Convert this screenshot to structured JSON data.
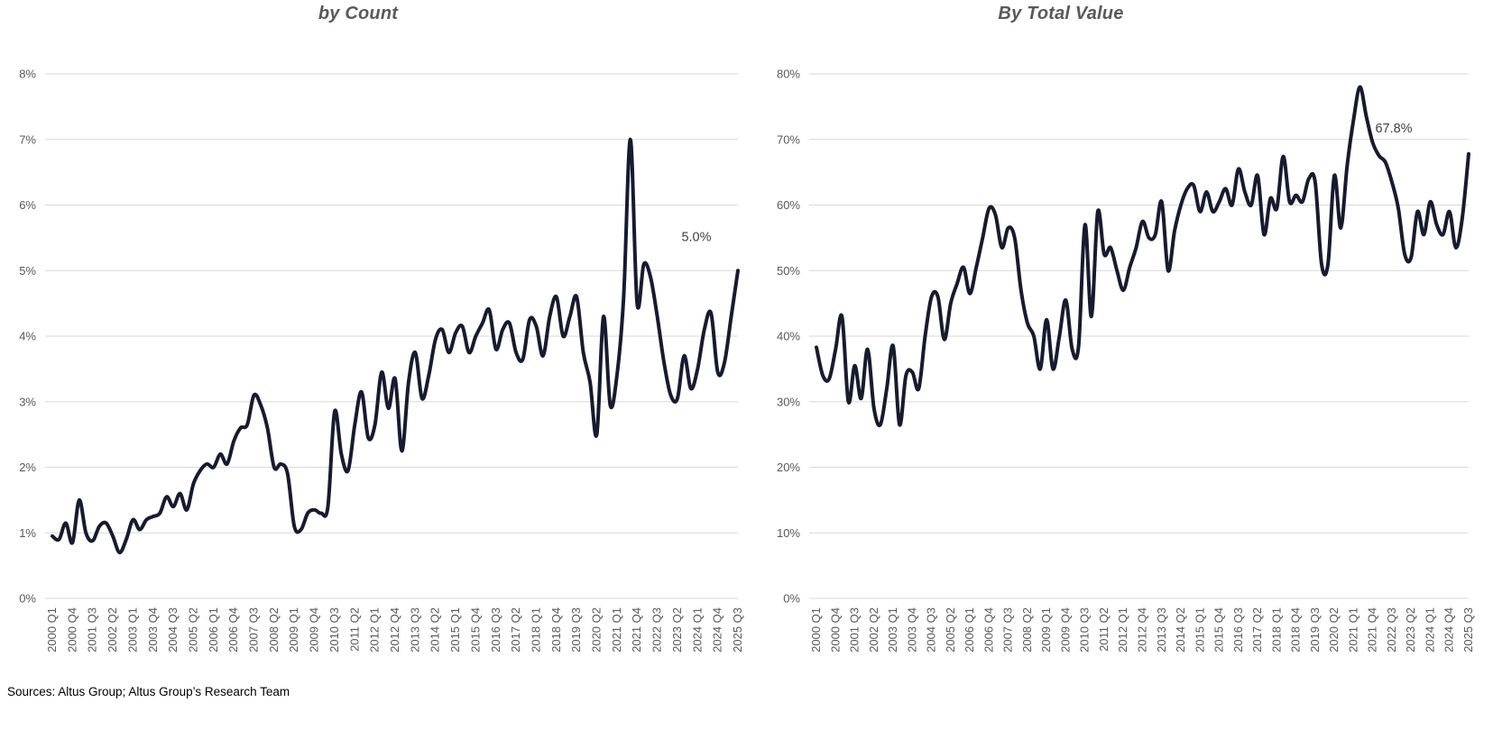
{
  "page": {
    "source_note": "Sources: Altus Group; Altus Group’s Research Team"
  },
  "colors": {
    "line": "#161b2f",
    "grid": "#d9d9d9",
    "axis_text": "#595959",
    "title_text": "#595959",
    "data_label": "#404040"
  },
  "chart_data": [
    {
      "id": "count",
      "type": "line",
      "title": "by Count",
      "ylabel": "",
      "xlabel": "",
      "ylim": [
        0,
        8
      ],
      "ytick_step": 1,
      "ytick_labels": [
        "0%",
        "1%",
        "2%",
        "3%",
        "4%",
        "5%",
        "6%",
        "7%",
        "8%"
      ],
      "grid": true,
      "legend": "none",
      "x_tick_every": 3,
      "end_label": "5.0%",
      "categories": [
        "2000 Q1",
        "2000 Q2",
        "2000 Q3",
        "2000 Q4",
        "2001 Q1",
        "2001 Q2",
        "2001 Q3",
        "2001 Q4",
        "2002 Q1",
        "2002 Q2",
        "2002 Q3",
        "2002 Q4",
        "2003 Q1",
        "2003 Q2",
        "2003 Q3",
        "2003 Q4",
        "2004 Q1",
        "2004 Q2",
        "2004 Q3",
        "2004 Q4",
        "2005 Q1",
        "2005 Q2",
        "2005 Q3",
        "2005 Q4",
        "2006 Q1",
        "2006 Q2",
        "2006 Q3",
        "2006 Q4",
        "2007 Q1",
        "2007 Q2",
        "2007 Q3",
        "2007 Q4",
        "2008 Q1",
        "2008 Q2",
        "2008 Q3",
        "2008 Q4",
        "2009 Q1",
        "2009 Q2",
        "2009 Q3",
        "2009 Q4",
        "2010 Q1",
        "2010 Q2",
        "2010 Q3",
        "2010 Q4",
        "2011 Q1",
        "2011 Q2",
        "2011 Q3",
        "2011 Q4",
        "2012 Q1",
        "2012 Q2",
        "2012 Q3",
        "2012 Q4",
        "2013 Q1",
        "2013 Q2",
        "2013 Q3",
        "2013 Q4",
        "2014 Q1",
        "2014 Q2",
        "2014 Q3",
        "2014 Q4",
        "2015 Q1",
        "2015 Q2",
        "2015 Q3",
        "2015 Q4",
        "2016 Q1",
        "2016 Q2",
        "2016 Q3",
        "2016 Q4",
        "2017 Q1",
        "2017 Q2",
        "2017 Q3",
        "2017 Q4",
        "2018 Q1",
        "2018 Q2",
        "2018 Q3",
        "2018 Q4",
        "2019 Q1",
        "2019 Q2",
        "2019 Q3",
        "2019 Q4",
        "2020 Q1",
        "2020 Q2",
        "2020 Q3",
        "2020 Q4",
        "2021 Q1",
        "2021 Q2",
        "2021 Q3",
        "2021 Q4",
        "2022 Q1",
        "2022 Q2",
        "2022 Q3",
        "2022 Q4",
        "2023 Q1",
        "2023 Q2",
        "2023 Q3",
        "2023 Q4",
        "2024 Q1",
        "2024 Q2",
        "2024 Q3",
        "2024 Q4",
        "2025 Q1",
        "2025 Q2",
        "2025 Q3"
      ],
      "values": [
        0.95,
        0.9,
        1.15,
        0.85,
        1.5,
        1.0,
        0.88,
        1.1,
        1.15,
        0.95,
        0.7,
        0.9,
        1.2,
        1.05,
        1.2,
        1.25,
        1.3,
        1.55,
        1.4,
        1.6,
        1.35,
        1.75,
        1.95,
        2.05,
        2.0,
        2.2,
        2.05,
        2.4,
        2.6,
        2.65,
        3.1,
        2.95,
        2.6,
        2.0,
        2.05,
        1.9,
        1.1,
        1.05,
        1.3,
        1.35,
        1.3,
        1.4,
        2.85,
        2.2,
        1.95,
        2.65,
        3.15,
        2.45,
        2.65,
        3.45,
        2.9,
        3.35,
        2.25,
        3.3,
        3.75,
        3.05,
        3.4,
        3.95,
        4.1,
        3.75,
        4.05,
        4.15,
        3.75,
        4.0,
        4.2,
        4.4,
        3.8,
        4.1,
        4.2,
        3.75,
        3.65,
        4.25,
        4.15,
        3.7,
        4.3,
        4.6,
        4.0,
        4.3,
        4.6,
        3.75,
        3.3,
        2.5,
        4.3,
        2.95,
        3.4,
        4.6,
        7.0,
        4.5,
        5.1,
        4.9,
        4.3,
        3.6,
        3.1,
        3.05,
        3.7,
        3.2,
        3.5,
        4.1,
        4.35,
        3.45,
        3.6,
        4.3,
        5.0
      ]
    },
    {
      "id": "value",
      "type": "line",
      "title": "By Total Value",
      "ylabel": "",
      "xlabel": "",
      "ylim": [
        0,
        80
      ],
      "ytick_step": 10,
      "ytick_labels": [
        "0%",
        "10%",
        "20%",
        "30%",
        "40%",
        "50%",
        "60%",
        "70%",
        "80%"
      ],
      "grid": true,
      "legend": "none",
      "x_tick_every": 3,
      "end_label": "67.8%",
      "categories": [
        "2000 Q1",
        "2000 Q2",
        "2000 Q3",
        "2000 Q4",
        "2001 Q1",
        "2001 Q2",
        "2001 Q3",
        "2001 Q4",
        "2002 Q1",
        "2002 Q2",
        "2002 Q3",
        "2002 Q4",
        "2003 Q1",
        "2003 Q2",
        "2003 Q3",
        "2003 Q4",
        "2004 Q1",
        "2004 Q2",
        "2004 Q3",
        "2004 Q4",
        "2005 Q1",
        "2005 Q2",
        "2005 Q3",
        "2005 Q4",
        "2006 Q1",
        "2006 Q2",
        "2006 Q3",
        "2006 Q4",
        "2007 Q1",
        "2007 Q2",
        "2007 Q3",
        "2007 Q4",
        "2008 Q1",
        "2008 Q2",
        "2008 Q3",
        "2008 Q4",
        "2009 Q1",
        "2009 Q2",
        "2009 Q3",
        "2009 Q4",
        "2010 Q1",
        "2010 Q2",
        "2010 Q3",
        "2010 Q4",
        "2011 Q1",
        "2011 Q2",
        "2011 Q3",
        "2011 Q4",
        "2012 Q1",
        "2012 Q2",
        "2012 Q3",
        "2012 Q4",
        "2013 Q1",
        "2013 Q2",
        "2013 Q3",
        "2013 Q4",
        "2014 Q1",
        "2014 Q2",
        "2014 Q3",
        "2014 Q4",
        "2015 Q1",
        "2015 Q2",
        "2015 Q3",
        "2015 Q4",
        "2016 Q1",
        "2016 Q2",
        "2016 Q3",
        "2016 Q4",
        "2017 Q1",
        "2017 Q2",
        "2017 Q3",
        "2017 Q4",
        "2018 Q1",
        "2018 Q2",
        "2018 Q3",
        "2018 Q4",
        "2019 Q1",
        "2019 Q2",
        "2019 Q3",
        "2019 Q4",
        "2020 Q1",
        "2020 Q2",
        "2020 Q3",
        "2020 Q4",
        "2021 Q1",
        "2021 Q2",
        "2021 Q3",
        "2021 Q4",
        "2022 Q1",
        "2022 Q2",
        "2022 Q3",
        "2022 Q4",
        "2023 Q1",
        "2023 Q2",
        "2023 Q3",
        "2023 Q4",
        "2024 Q1",
        "2024 Q2",
        "2024 Q3",
        "2024 Q4",
        "2025 Q1",
        "2025 Q2",
        "2025 Q3"
      ],
      "values": [
        38.3,
        34.0,
        33.5,
        38.0,
        43.0,
        30.0,
        35.5,
        30.5,
        38.0,
        29.0,
        26.5,
        32.0,
        38.5,
        26.5,
        34.0,
        34.5,
        32.0,
        40.0,
        46.0,
        46.0,
        39.5,
        45.0,
        48.0,
        50.5,
        46.5,
        50.5,
        55.0,
        59.5,
        58.5,
        53.5,
        56.5,
        55.0,
        47.0,
        42.0,
        40.0,
        35.0,
        42.5,
        35.0,
        40.0,
        45.5,
        38.0,
        38.5,
        57.0,
        43.0,
        59.0,
        52.5,
        53.5,
        50.0,
        47.0,
        50.5,
        53.5,
        57.5,
        55.0,
        55.5,
        60.5,
        50.0,
        56.0,
        60.0,
        62.5,
        63.0,
        59.0,
        62.0,
        59.0,
        60.5,
        62.5,
        60.0,
        65.5,
        62.0,
        60.0,
        64.5,
        55.5,
        61.0,
        59.5,
        67.4,
        60.5,
        61.5,
        60.5,
        64.0,
        63.5,
        51.0,
        51.0,
        64.5,
        56.5,
        66.0,
        73.0,
        78.0,
        73.5,
        69.5,
        67.5,
        66.5,
        63.5,
        59.5,
        52.5,
        52.0,
        59.0,
        55.5,
        60.5,
        57.0,
        55.5,
        59.0,
        53.5,
        58.0,
        67.8
      ]
    }
  ]
}
